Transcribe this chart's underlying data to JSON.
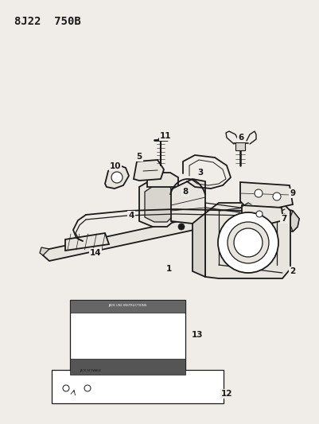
{
  "title_text": "8J22  750B",
  "bg_color": "#f0ede8",
  "line_color": "#1a1a1a",
  "fill_light": "#e8e4de",
  "fill_mid": "#d8d4ce",
  "fill_dark": "#c8c4be",
  "white": "#ffffff",
  "title_fontsize": 10
}
